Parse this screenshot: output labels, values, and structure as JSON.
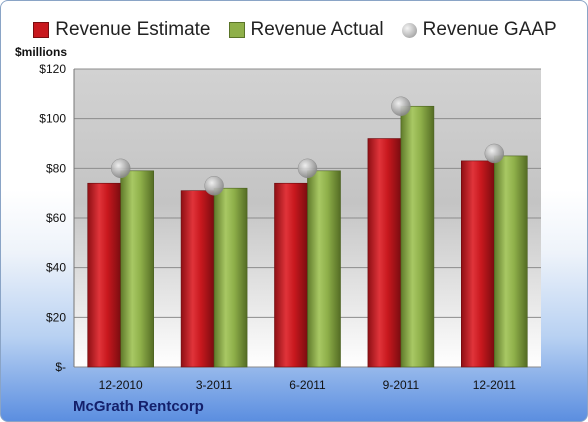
{
  "unit_label": "$millions",
  "company": "McGrath Rentcorp",
  "legend": {
    "estimate": "Revenue Estimate",
    "actual": "Revenue Actual",
    "gaap": "Revenue GAAP"
  },
  "colors": {
    "estimate": "#c8181e",
    "actual": "#8fb04a",
    "gaap": "#a8a8a8"
  },
  "chart_data": {
    "type": "bar",
    "title": "",
    "xlabel": "",
    "ylabel": "$millions",
    "categories": [
      "12-2010",
      "3-2011",
      "6-2011",
      "9-2011",
      "12-2011"
    ],
    "series": [
      {
        "name": "Revenue Estimate",
        "type": "bar",
        "values": [
          74,
          71,
          74,
          92,
          83
        ]
      },
      {
        "name": "Revenue Actual",
        "type": "bar",
        "values": [
          79,
          72,
          79,
          105,
          85
        ]
      },
      {
        "name": "Revenue GAAP",
        "type": "scatter",
        "values": [
          80,
          73,
          80,
          105,
          86
        ]
      }
    ],
    "ylim": [
      0,
      120
    ],
    "yticks": [
      0,
      20,
      40,
      60,
      80,
      100,
      120
    ],
    "ytick_labels": [
      "$-",
      "$20",
      "$40",
      "$60",
      "$80",
      "$100",
      "$120"
    ],
    "grid": true,
    "legend_position": "top"
  }
}
